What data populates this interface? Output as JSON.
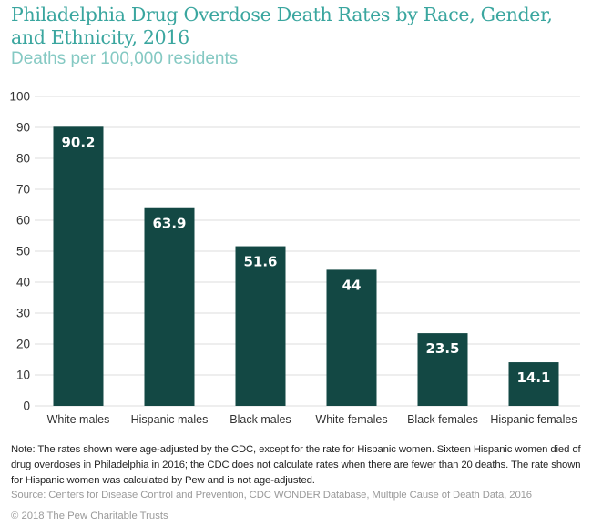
{
  "chart_data": {
    "type": "bar",
    "title": "Philadelphia Drug Overdose Death Rates by Race, Gender, and Ethnicity, 2016",
    "subtitle": "Deaths per 100,000 residents",
    "xlabel": "",
    "ylabel": "",
    "categories": [
      "White males",
      "Hispanic males",
      "Black males",
      "White females",
      "Black females",
      "Hispanic females"
    ],
    "values": [
      90.2,
      63.9,
      51.6,
      44,
      23.5,
      14.1
    ],
    "value_labels": [
      "90.2",
      "63.9",
      "51.6",
      "44",
      "23.5",
      "14.1"
    ],
    "ylim": [
      0,
      100
    ],
    "yticks": [
      0,
      10,
      20,
      30,
      40,
      50,
      60,
      70,
      80,
      90,
      100
    ],
    "grid": true,
    "legend": "none",
    "colors": {
      "bar": "#134844",
      "bar_label": "#ffffff",
      "grid": "#e4e4e4",
      "title": "#3aa69f",
      "subtitle": "#85c9c3"
    }
  },
  "footer": {
    "note": "Note: The rates shown were age-adjusted by the CDC, except for the rate for Hispanic women. Sixteen Hispanic women died of drug overdoses in Philadelphia in 2016; the CDC does not calculate rates when there are fewer than 20 deaths. The rate shown for Hispanic women was calculated by Pew and is not age-adjusted.",
    "source": "Source: Centers for Disease Control and Prevention, CDC WONDER Database, Multiple Cause of Death Data, 2016",
    "copyright": "© 2018 The Pew Charitable Trusts"
  }
}
